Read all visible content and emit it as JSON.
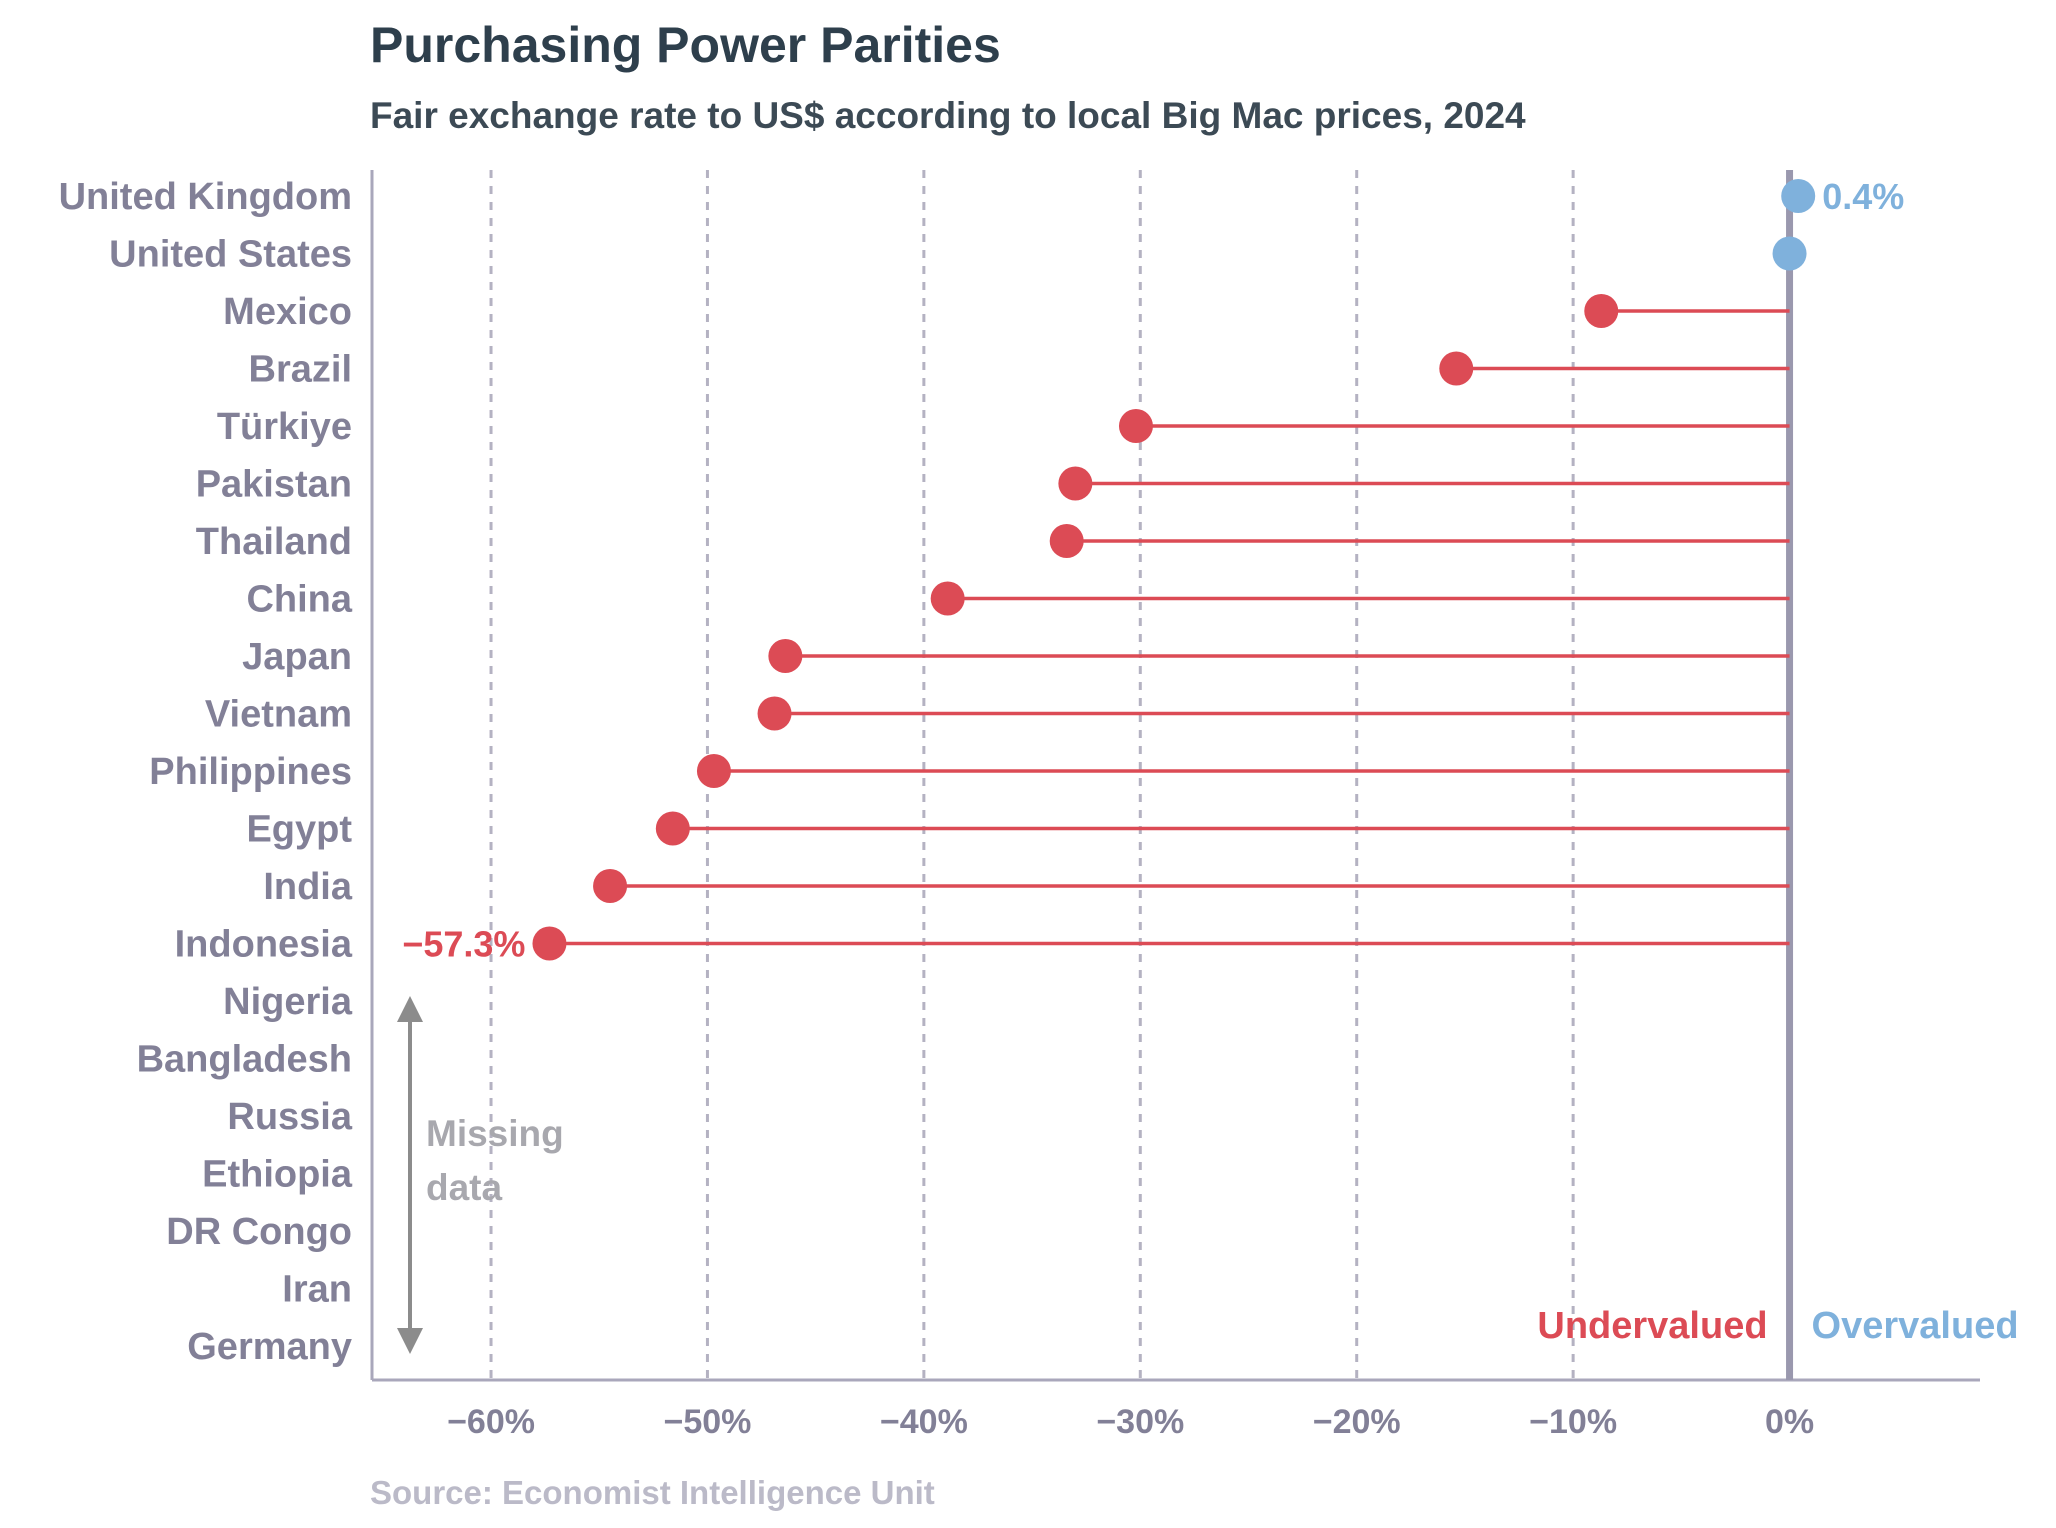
{
  "chart_data": {
    "type": "lollipop",
    "title": "Purchasing Power Parities",
    "subtitle": "Fair exchange rate to US$ according to local Big Mac prices, 2024",
    "source": "Source: Economist Intelligence Unit",
    "xlim": [
      -65.5,
      8.8
    ],
    "xticks": [
      -60,
      -50,
      -40,
      -30,
      -20,
      -10,
      0
    ],
    "xtick_labels": [
      "−60%",
      "−50%",
      "−40%",
      "−30%",
      "−20%",
      "−10%",
      "0%"
    ],
    "grid": "vertical dashed",
    "categories": [
      "United Kingdom",
      "United States",
      "Mexico",
      "Brazil",
      "Türkiye",
      "Pakistan",
      "Thailand",
      "China",
      "Japan",
      "Vietnam",
      "Philippines",
      "Egypt",
      "India",
      "Indonesia",
      "Nigeria",
      "Bangladesh",
      "Russia",
      "Ethiopia",
      "DR Congo",
      "Iran",
      "Germany"
    ],
    "values": [
      0.4,
      0,
      -8.7,
      -15.4,
      -30.2,
      -33.0,
      -33.4,
      -38.9,
      -46.4,
      -46.9,
      -49.7,
      -51.6,
      -54.5,
      -57.3,
      null,
      null,
      null,
      null,
      null,
      null,
      null
    ],
    "data_labels": [
      {
        "category": "United Kingdom",
        "text": "0.4%"
      },
      {
        "category": "Indonesia",
        "text": "−57.3%"
      }
    ],
    "annotations": {
      "missing": "Missing data",
      "undervalued": "Undervalued",
      "overvalued": "Overvalued"
    },
    "colors": {
      "negative": "#dc4b55",
      "positive": "#7fb1dc",
      "zero_line": "#9a98ae",
      "axis": "#a9a7bb",
      "grid": "#b4b2c2",
      "missing": "#8c8c8c"
    }
  }
}
